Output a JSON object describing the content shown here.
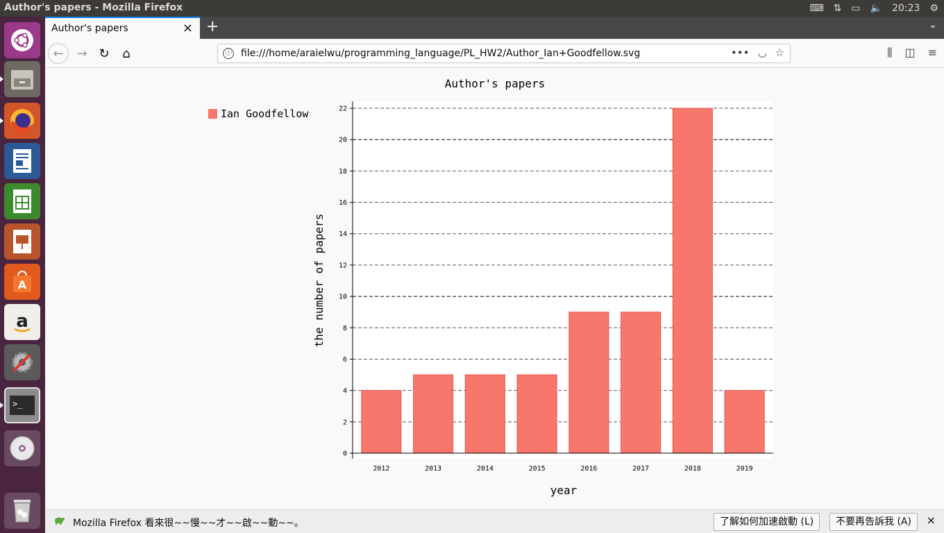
{
  "window": {
    "title": "Author's papers - Mozilla Firefox",
    "clock": "20:23"
  },
  "launcher": {
    "items": [
      "ubuntu-dash",
      "files",
      "firefox",
      "libreoffice-writer",
      "libreoffice-calc",
      "libreoffice-impress",
      "ubuntu-software",
      "amazon",
      "system-settings",
      "terminal",
      "dvd",
      "trash"
    ]
  },
  "browser": {
    "tab_title": "Author's papers",
    "tab_close": "×",
    "new_tab": "+",
    "url": "file:///home/araielwu/programming_language/PL_HW2/Author_Ian+Goodfellow.svg",
    "url_icon": "ⓘ"
  },
  "chart_data": {
    "type": "bar",
    "title": "Author's papers",
    "xlabel": "year",
    "ylabel": "the number of papers",
    "categories": [
      "2012",
      "2013",
      "2014",
      "2015",
      "2016",
      "2017",
      "2018",
      "2019"
    ],
    "series": [
      {
        "name": "Ian Goodfellow",
        "values": [
          4,
          5,
          5,
          5,
          9,
          9,
          22,
          4
        ]
      }
    ],
    "ylim": [
      0,
      22
    ],
    "yticks": [
      0,
      2,
      4,
      6,
      8,
      10,
      12,
      14,
      16,
      18,
      20,
      22
    ],
    "grid": true,
    "legend": "top-left",
    "bar_color": "#f7776c",
    "bar_stroke": "#e8504a"
  },
  "notification": {
    "message": "Mozilla Firefox 看來很~~慢~~才~~啟~~動~~。",
    "learn_button": "了解如何加速啟動 (L)",
    "dismiss_button": "不要再告訴我 (A)",
    "close": "×"
  }
}
